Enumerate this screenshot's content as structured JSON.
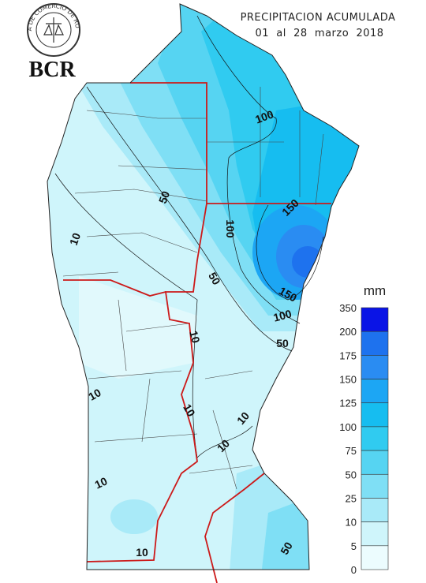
{
  "logo": {
    "ring_text": "BOLSA DE COMERCIO DE ROSARIO",
    "name": "BCR"
  },
  "header": {
    "title": "PRECIPITACION ACUMULADA",
    "subtitle": "01  al  28  marzo  2018"
  },
  "legend": {
    "unit": "mm",
    "levels": [
      350,
      200,
      175,
      150,
      125,
      100,
      75,
      50,
      25,
      10,
      5,
      0
    ],
    "colors": [
      "#0a14e6",
      "#1e72ee",
      "#2a8cf2",
      "#1ca6f4",
      "#16bdf0",
      "#30cbf0",
      "#56d4f2",
      "#7fdff5",
      "#a9eaf8",
      "#cff5fb",
      "#ecfcfe"
    ]
  },
  "contour_labels": [
    "100",
    "100",
    "150",
    "150",
    "100",
    "50",
    "50",
    "50",
    "10",
    "10",
    "10",
    "10",
    "10",
    "10",
    "10",
    "10",
    "50"
  ]
}
